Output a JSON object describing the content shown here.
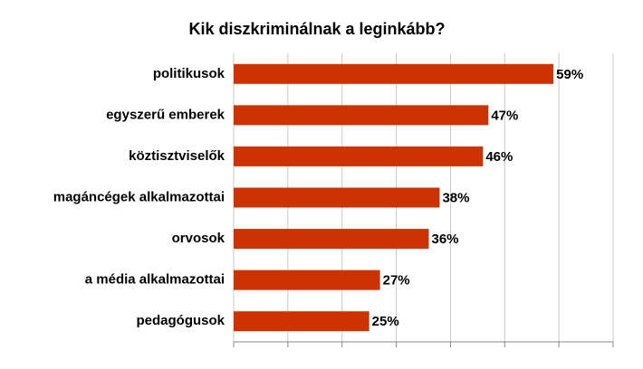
{
  "chart_data": {
    "type": "bar",
    "orientation": "horizontal",
    "title": "Kik diszkriminálnak a leginkább?",
    "categories": [
      "politikusok",
      "egyszerű emberek",
      "köztisztviselők",
      "magáncégek alkalmazottai",
      "orvosok",
      "a média alkalmazottai",
      "pedagógusok"
    ],
    "values": [
      59,
      47,
      46,
      38,
      36,
      27,
      25
    ],
    "value_labels": [
      "59%",
      "47%",
      "46%",
      "38%",
      "36%",
      "27%",
      "25%"
    ],
    "color": "#cc3300",
    "xlim": [
      0,
      70
    ],
    "xticks": [
      0,
      10,
      20,
      30,
      40,
      50,
      60,
      70
    ],
    "grid": true
  }
}
